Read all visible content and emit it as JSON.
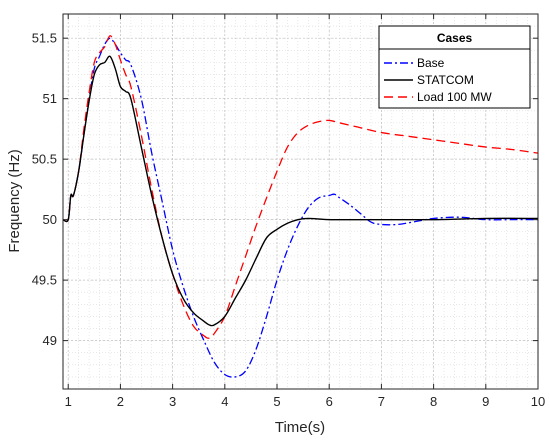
{
  "chart_data": {
    "type": "line",
    "xlabel": "Time(s)",
    "ylabel": "Frequency (Hz)",
    "xlim": [
      0.9,
      10
    ],
    "ylim": [
      48.6,
      51.7
    ],
    "x_ticks": [
      1,
      2,
      3,
      4,
      5,
      6,
      7,
      8,
      9,
      10
    ],
    "y_ticks": [
      {
        "value": 49,
        "label": "49"
      },
      {
        "value": 49.5,
        "label": "49.5"
      },
      {
        "value": 50,
        "label": "50"
      },
      {
        "value": 50.5,
        "label": "50.5"
      },
      {
        "value": 51,
        "label": "51"
      },
      {
        "value": 51.5,
        "label": "51.5"
      }
    ],
    "grid": true,
    "minor_grid": true,
    "legend": {
      "title": "Cases",
      "position": "top-right"
    },
    "series": [
      {
        "name": "Base",
        "color": "#0000ff",
        "style": "dashdot",
        "x": [
          0.9,
          1.0,
          1.05,
          1.1,
          1.2,
          1.3,
          1.4,
          1.5,
          1.6,
          1.7,
          1.8,
          1.9,
          2.0,
          2.1,
          2.2,
          2.4,
          2.6,
          2.8,
          3.0,
          3.2,
          3.4,
          3.6,
          3.8,
          4.0,
          4.2,
          4.4,
          4.6,
          4.8,
          5.0,
          5.2,
          5.4,
          5.6,
          5.8,
          6.0,
          6.1,
          6.2,
          6.4,
          6.6,
          6.8,
          7.0,
          7.3,
          7.6,
          8.0,
          8.5,
          9.0,
          9.5,
          10.0
        ],
        "y": [
          50.0,
          50.0,
          50.2,
          50.2,
          50.4,
          50.7,
          51.0,
          51.25,
          51.35,
          51.45,
          51.5,
          51.45,
          51.38,
          51.32,
          51.28,
          51.0,
          50.55,
          50.15,
          49.75,
          49.45,
          49.2,
          49.0,
          48.82,
          48.72,
          48.7,
          48.75,
          48.93,
          49.2,
          49.5,
          49.75,
          49.95,
          50.1,
          50.18,
          50.2,
          50.21,
          50.18,
          50.12,
          50.05,
          49.98,
          49.96,
          49.96,
          49.98,
          50.01,
          50.02,
          50.0,
          50.0,
          50.0
        ]
      },
      {
        "name": "STATCOM",
        "color": "#000000",
        "style": "solid",
        "x": [
          0.9,
          1.0,
          1.05,
          1.1,
          1.2,
          1.3,
          1.4,
          1.5,
          1.6,
          1.7,
          1.8,
          1.9,
          2.0,
          2.1,
          2.2,
          2.4,
          2.6,
          2.8,
          3.0,
          3.2,
          3.4,
          3.6,
          3.7,
          3.8,
          4.0,
          4.2,
          4.4,
          4.6,
          4.8,
          5.0,
          5.2,
          5.4,
          5.6,
          6.0,
          6.5,
          7.0,
          8.0,
          9.0,
          10.0
        ],
        "y": [
          50.0,
          50.0,
          50.2,
          50.2,
          50.4,
          50.7,
          50.98,
          51.2,
          51.28,
          51.3,
          51.35,
          51.25,
          51.1,
          51.06,
          51.0,
          50.6,
          50.2,
          49.85,
          49.55,
          49.35,
          49.23,
          49.16,
          49.13,
          49.13,
          49.2,
          49.35,
          49.5,
          49.68,
          49.85,
          49.92,
          49.97,
          50.0,
          50.01,
          50.0,
          50.0,
          50.0,
          50.0,
          50.01,
          50.01
        ]
      },
      {
        "name": "Load 100 MW",
        "color": "#ff0000",
        "style": "dashed",
        "x": [
          0.9,
          1.0,
          1.05,
          1.1,
          1.2,
          1.3,
          1.4,
          1.5,
          1.6,
          1.7,
          1.8,
          1.9,
          2.0,
          2.1,
          2.2,
          2.4,
          2.6,
          2.8,
          3.0,
          3.2,
          3.4,
          3.6,
          3.7,
          3.8,
          4.0,
          4.2,
          4.4,
          4.6,
          4.8,
          5.0,
          5.2,
          5.4,
          5.6,
          5.8,
          6.0,
          6.2,
          6.5,
          7.0,
          7.5,
          8.0,
          8.5,
          9.0,
          9.5,
          10.0
        ],
        "y": [
          50.0,
          50.0,
          50.2,
          50.2,
          50.4,
          50.75,
          51.05,
          51.3,
          51.38,
          51.43,
          51.52,
          51.45,
          51.32,
          51.2,
          51.1,
          50.7,
          50.25,
          49.85,
          49.55,
          49.3,
          49.12,
          49.04,
          49.02,
          49.06,
          49.2,
          49.45,
          49.7,
          49.95,
          50.18,
          50.4,
          50.6,
          50.72,
          50.78,
          50.81,
          50.82,
          50.8,
          50.77,
          50.72,
          50.69,
          50.66,
          50.63,
          50.6,
          50.58,
          50.55
        ]
      }
    ]
  }
}
